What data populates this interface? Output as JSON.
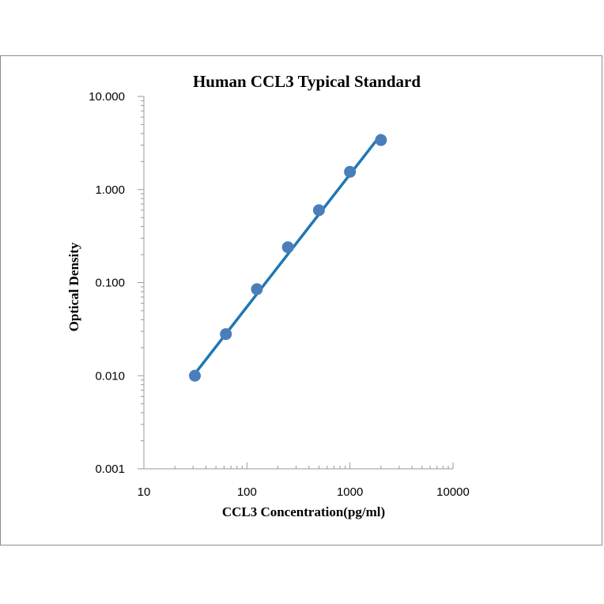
{
  "chart_data": {
    "type": "scatter",
    "title": "Human CCL3 Typical Standard",
    "xlabel": "CCL3 Concentration(pg/ml)",
    "ylabel": "Optical Density",
    "x_scale": "log",
    "y_scale": "log",
    "xlim": [
      10,
      10000
    ],
    "ylim": [
      0.001,
      10
    ],
    "x_ticks": [
      10,
      100,
      1000,
      10000
    ],
    "x_tick_labels": [
      "10",
      "100",
      "1000",
      "10000"
    ],
    "y_ticks": [
      0.001,
      0.01,
      0.1,
      1,
      10
    ],
    "y_tick_labels": [
      "0.001",
      "0.010",
      "0.100",
      "1.000",
      "10.000"
    ],
    "grid": false,
    "legend": "none",
    "series": [
      {
        "points": [
          {
            "x": 31.25,
            "y": 0.01
          },
          {
            "x": 62.5,
            "y": 0.028
          },
          {
            "x": 125,
            "y": 0.085
          },
          {
            "x": 250,
            "y": 0.24
          },
          {
            "x": 500,
            "y": 0.6
          },
          {
            "x": 1000,
            "y": 1.55
          },
          {
            "x": 2000,
            "y": 3.4
          }
        ],
        "fit_line": {
          "x": [
            31.25,
            2000
          ],
          "y": [
            0.0105,
            3.9
          ]
        }
      }
    ],
    "colors": {
      "marker": "#4a7ebb",
      "line": "#1f77b4",
      "frame": "#8c8c8c"
    }
  }
}
